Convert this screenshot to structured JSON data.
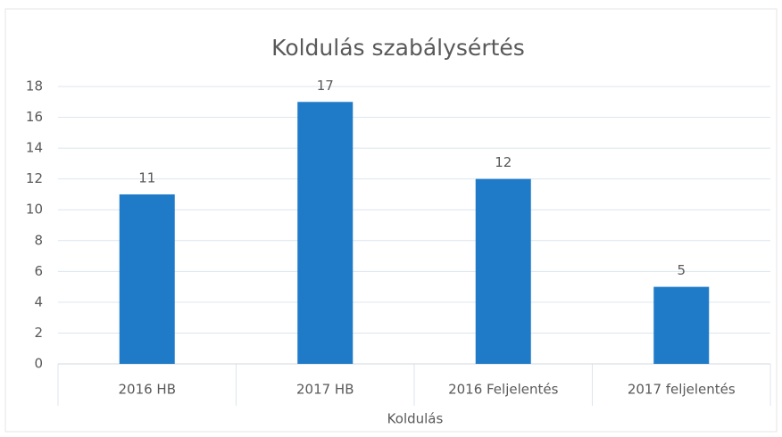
{
  "chart_data": {
    "type": "bar",
    "title": "Koldulás szabálysértés",
    "categories": [
      "2016 HB",
      "2017 HB",
      "2016 Feljelentés",
      "2017 feljelentés"
    ],
    "values": [
      11,
      17,
      12,
      5
    ],
    "color": "#1f7bc8",
    "xlabel": "Koldulás",
    "ylim": [
      0,
      18
    ],
    "yticks": [
      0,
      2,
      4,
      6,
      8,
      10,
      12,
      14,
      16,
      18
    ],
    "grid": true
  }
}
